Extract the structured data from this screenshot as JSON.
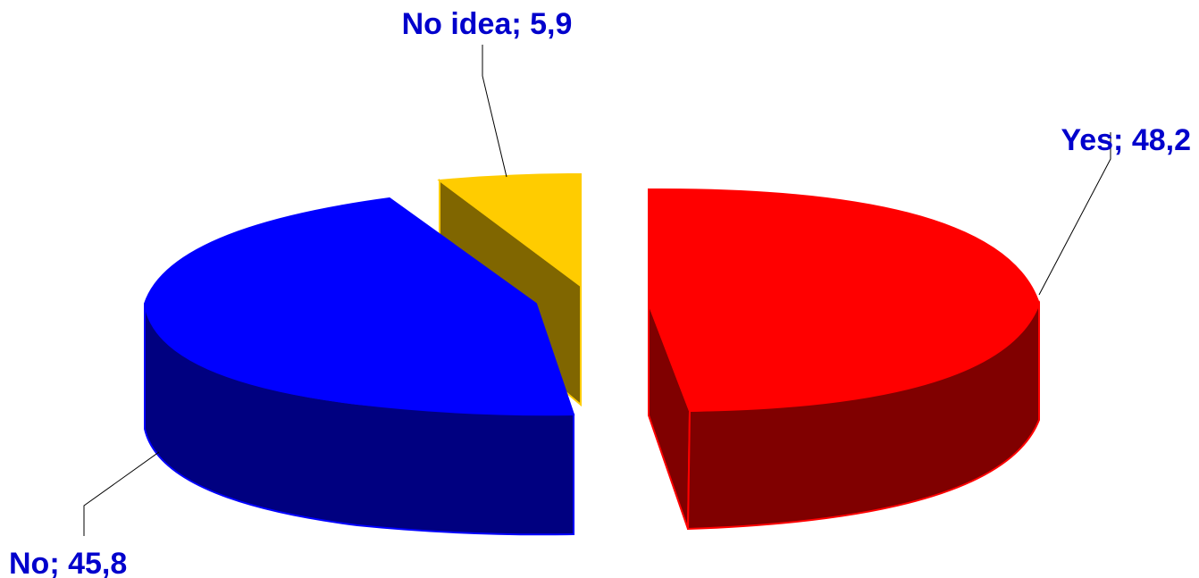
{
  "chart_data": {
    "type": "pie",
    "title": "",
    "slices": [
      {
        "label": "Yes; 48,2",
        "category": "Yes",
        "value": 48.2,
        "color": "#ff0000",
        "side_color": "#800000"
      },
      {
        "label": "No; 45,8",
        "category": "No",
        "value": 45.8,
        "color": "#0000ff",
        "side_color": "#000080"
      },
      {
        "label": "No idea; 5,9",
        "category": "No idea",
        "value": 5.9,
        "color": "#ffcc00",
        "side_color": "#806600"
      }
    ],
    "label_color": "#0000cc",
    "style": "3d-exploded"
  }
}
